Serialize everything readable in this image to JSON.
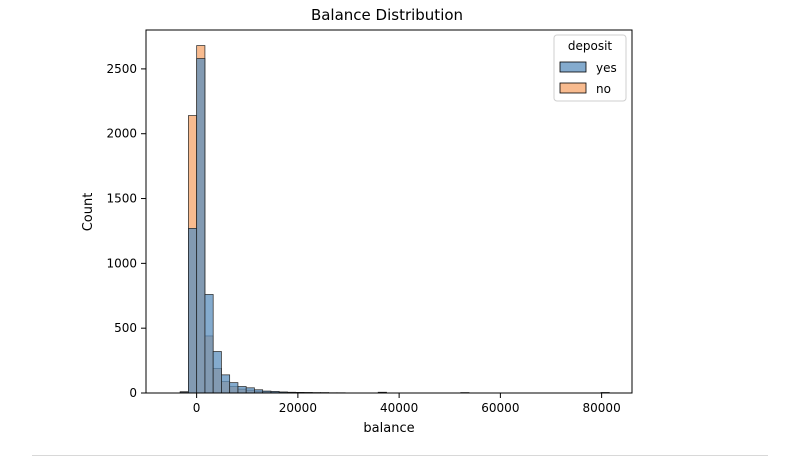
{
  "chart_data": {
    "type": "histogram",
    "title": "Balance Distribution",
    "xlabel": "balance",
    "ylabel": "Count",
    "xlim": [
      -10000,
      86000
    ],
    "ylim": [
      0,
      2800
    ],
    "xticks": [
      0,
      20000,
      40000,
      60000,
      80000
    ],
    "yticks": [
      0,
      500,
      1000,
      1500,
      2000,
      2500
    ],
    "bin_width": 1630,
    "bin_starts": [
      -3250,
      -1620,
      10,
      1640,
      3270,
      4900,
      6530,
      8160,
      9790,
      11420,
      13050,
      14680,
      16310,
      17940,
      19570,
      21200,
      22830,
      24460,
      26090,
      27720,
      35870,
      52170,
      79880
    ],
    "grid": false,
    "legend": {
      "title": "deposit",
      "position": "top-right"
    },
    "series": [
      {
        "name": "yes",
        "color": "#5b8fbe",
        "values": [
          8,
          1270,
          2580,
          760,
          320,
          140,
          80,
          50,
          40,
          25,
          15,
          12,
          8,
          6,
          5,
          4,
          3,
          3,
          2,
          2,
          6,
          3,
          4
        ]
      },
      {
        "name": "no",
        "color": "#f5a46a",
        "values": [
          10,
          2140,
          2680,
          440,
          190,
          90,
          50,
          30,
          22,
          14,
          10,
          8,
          6,
          5,
          4,
          3,
          2,
          2,
          1,
          1,
          3,
          2,
          2
        ]
      }
    ]
  }
}
